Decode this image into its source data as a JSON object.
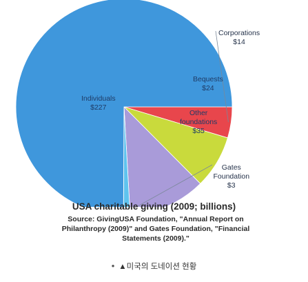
{
  "chart_data": {
    "type": "pie",
    "title": "USA charitable giving (2009; billions)",
    "source": "Source: GivingUSA Foundation, \"Annual Report on Philanthropy (2009)\" and Gates Foundation, \"Financial Statements (2009).\"",
    "slices": [
      {
        "label_lines": [
          "Corporations",
          "$14"
        ],
        "value": 14,
        "color": "#e8464c"
      },
      {
        "label_lines": [
          "Bequests",
          "$24"
        ],
        "value": 24,
        "color": "#c9da3c"
      },
      {
        "label_lines": [
          "Other",
          "foundations",
          "$35"
        ],
        "value": 35,
        "color": "#a99bd9"
      },
      {
        "label_lines": [
          "Gates",
          "Foundation",
          "$3"
        ],
        "value": 3,
        "color": "#5fc3ee"
      },
      {
        "label_lines": [
          "Individuals",
          "$227"
        ],
        "value": 227,
        "color": "#3f97dc"
      }
    ],
    "start_angle_deg": 0,
    "legend": "none"
  },
  "caption": {
    "bullet": "•",
    "text": "▲미국의 도네이션 현황"
  }
}
